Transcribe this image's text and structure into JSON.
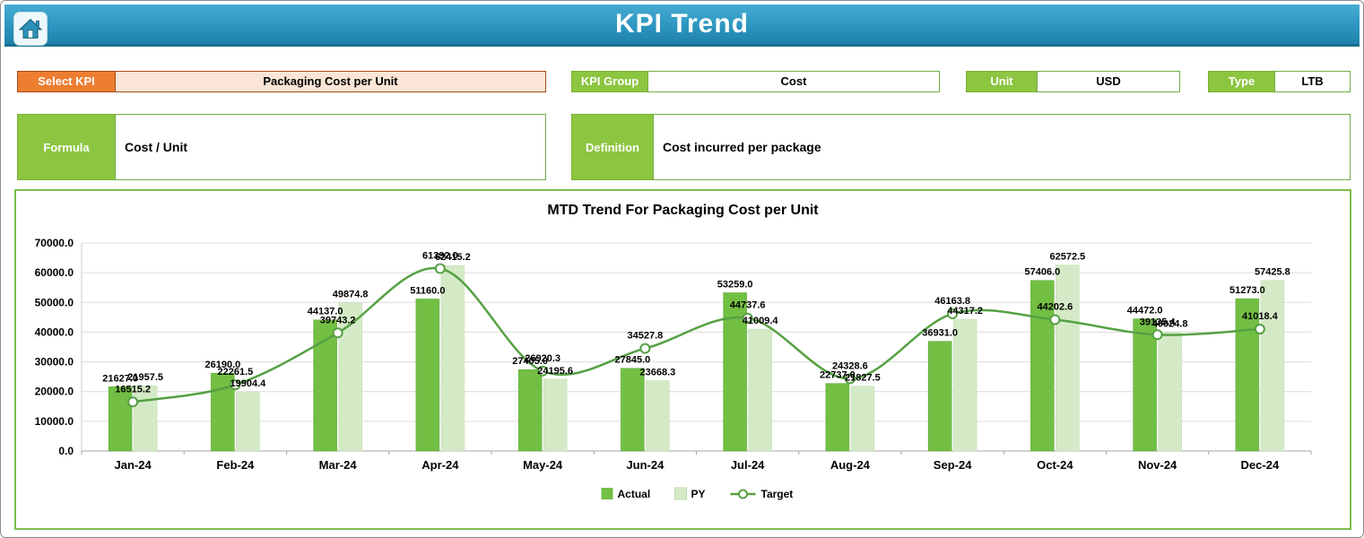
{
  "header": {
    "title": "KPI Trend"
  },
  "controls": {
    "select_kpi": {
      "label": "Select KPI",
      "value": "Packaging Cost per Unit"
    },
    "kpi_group": {
      "label": "KPI Group",
      "value": "Cost"
    },
    "unit": {
      "label": "Unit",
      "value": "USD"
    },
    "type": {
      "label": "Type",
      "value": "LTB"
    },
    "formula": {
      "label": "Formula",
      "value": "Cost / Unit"
    },
    "definition": {
      "label": "Definition",
      "value": "Cost incurred per package"
    }
  },
  "theme": {
    "header_blue": "#2d96c0",
    "green_label": "#8cc540",
    "orange_label": "#ed7d31",
    "peach_fill": "#fbe5d6",
    "panel_border_green": "#7cbe4c"
  },
  "chart_data": {
    "type": "combo",
    "title": "MTD Trend For Packaging Cost per Unit",
    "categories": [
      "Jan-24",
      "Feb-24",
      "Mar-24",
      "Apr-24",
      "May-24",
      "Jun-24",
      "Jul-24",
      "Aug-24",
      "Sep-24",
      "Oct-24",
      "Nov-24",
      "Dec-24"
    ],
    "series": [
      {
        "name": "Actual",
        "chart_type": "bar",
        "color": "#72bf44",
        "values": [
          21627.0,
          26190.0,
          44137.0,
          51160.0,
          27405.0,
          27845.0,
          53259.0,
          22737.0,
          36931.0,
          57406.0,
          44472.0,
          51273.0
        ]
      },
      {
        "name": "PY",
        "chart_type": "bar",
        "color": "#d4eac6",
        "values": [
          21957.5,
          19904.4,
          49874.8,
          62415.2,
          24195.6,
          23668.3,
          41009.4,
          21827.5,
          44317.2,
          62572.5,
          40024.8,
          57425.8
        ]
      },
      {
        "name": "Target",
        "chart_type": "line",
        "color": "#55a043",
        "values": [
          16515.2,
          22261.5,
          39743.2,
          61392.0,
          26920.3,
          34527.8,
          44737.6,
          24328.6,
          46163.8,
          44202.6,
          39135.4,
          41018.4
        ]
      }
    ],
    "xlabel": "",
    "ylabel": "",
    "ylim": [
      0,
      70000
    ],
    "ytick_step": 10000,
    "ytick_format": "one-decimal",
    "grid": true,
    "legend_position": "bottom",
    "data_labels": true
  }
}
